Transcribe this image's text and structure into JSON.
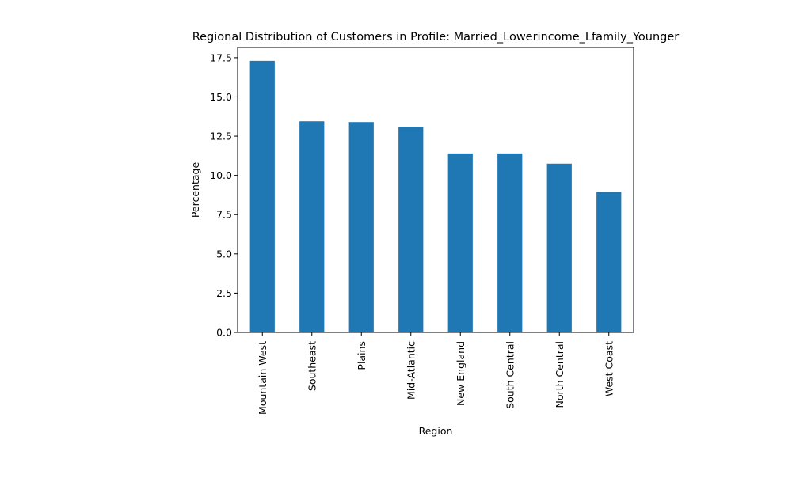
{
  "chart_data": {
    "type": "bar",
    "title": "Regional Distribution of Customers in Profile: Married_Lowerincome_Lfamily_Younger",
    "xlabel": "Region",
    "ylabel": "Percentage",
    "categories": [
      "Mountain West",
      "Southeast",
      "Plains",
      "Mid-Atlantic",
      "New England",
      "South Central",
      "North Central",
      "West Coast"
    ],
    "values": [
      17.3,
      13.45,
      13.4,
      13.1,
      11.4,
      11.4,
      10.75,
      8.95
    ],
    "ylim": [
      0,
      18.15
    ],
    "yticks": [
      0.0,
      2.5,
      5.0,
      7.5,
      10.0,
      12.5,
      15.0,
      17.5
    ],
    "ytick_labels": [
      "0.0",
      "2.5",
      "5.0",
      "7.5",
      "10.0",
      "12.5",
      "15.0",
      "17.5"
    ],
    "bar_color": "#1f77b4",
    "grid": false,
    "legend": "none"
  }
}
